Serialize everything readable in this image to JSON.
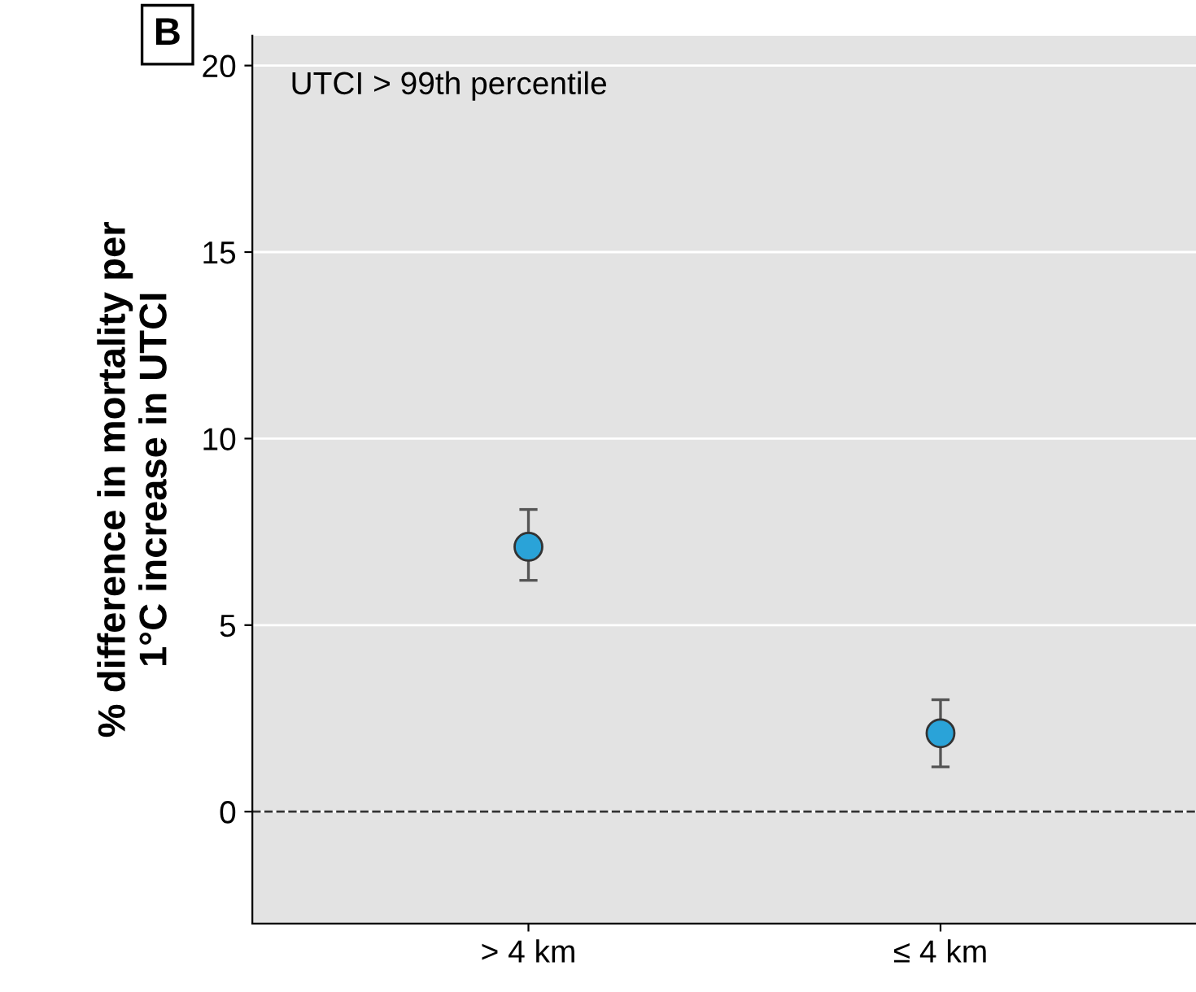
{
  "chart_data": {
    "type": "scatter",
    "ylabel": "% difference in mortality per\n1°C increase in UTCI",
    "categories": [
      "> 4 km",
      "≤ 4 km"
    ],
    "series": [
      {
        "color": "#2aa3d8",
        "values": [
          7.1,
          2.1
        ],
        "errors": [
          [
            6.2,
            8.1
          ],
          [
            1.2,
            3.0
          ]
        ]
      }
    ],
    "ylim": [
      -3,
      20.8
    ],
    "yticks": [
      0,
      5,
      10,
      15,
      20
    ],
    "grid": "y",
    "marker": "circle",
    "ref_lines": [
      {
        "axis": "y",
        "value": 0,
        "line_style": "dashed",
        "color": "#333333"
      }
    ],
    "annotations": [
      "B",
      "UTCI > 99th percentile"
    ]
  }
}
